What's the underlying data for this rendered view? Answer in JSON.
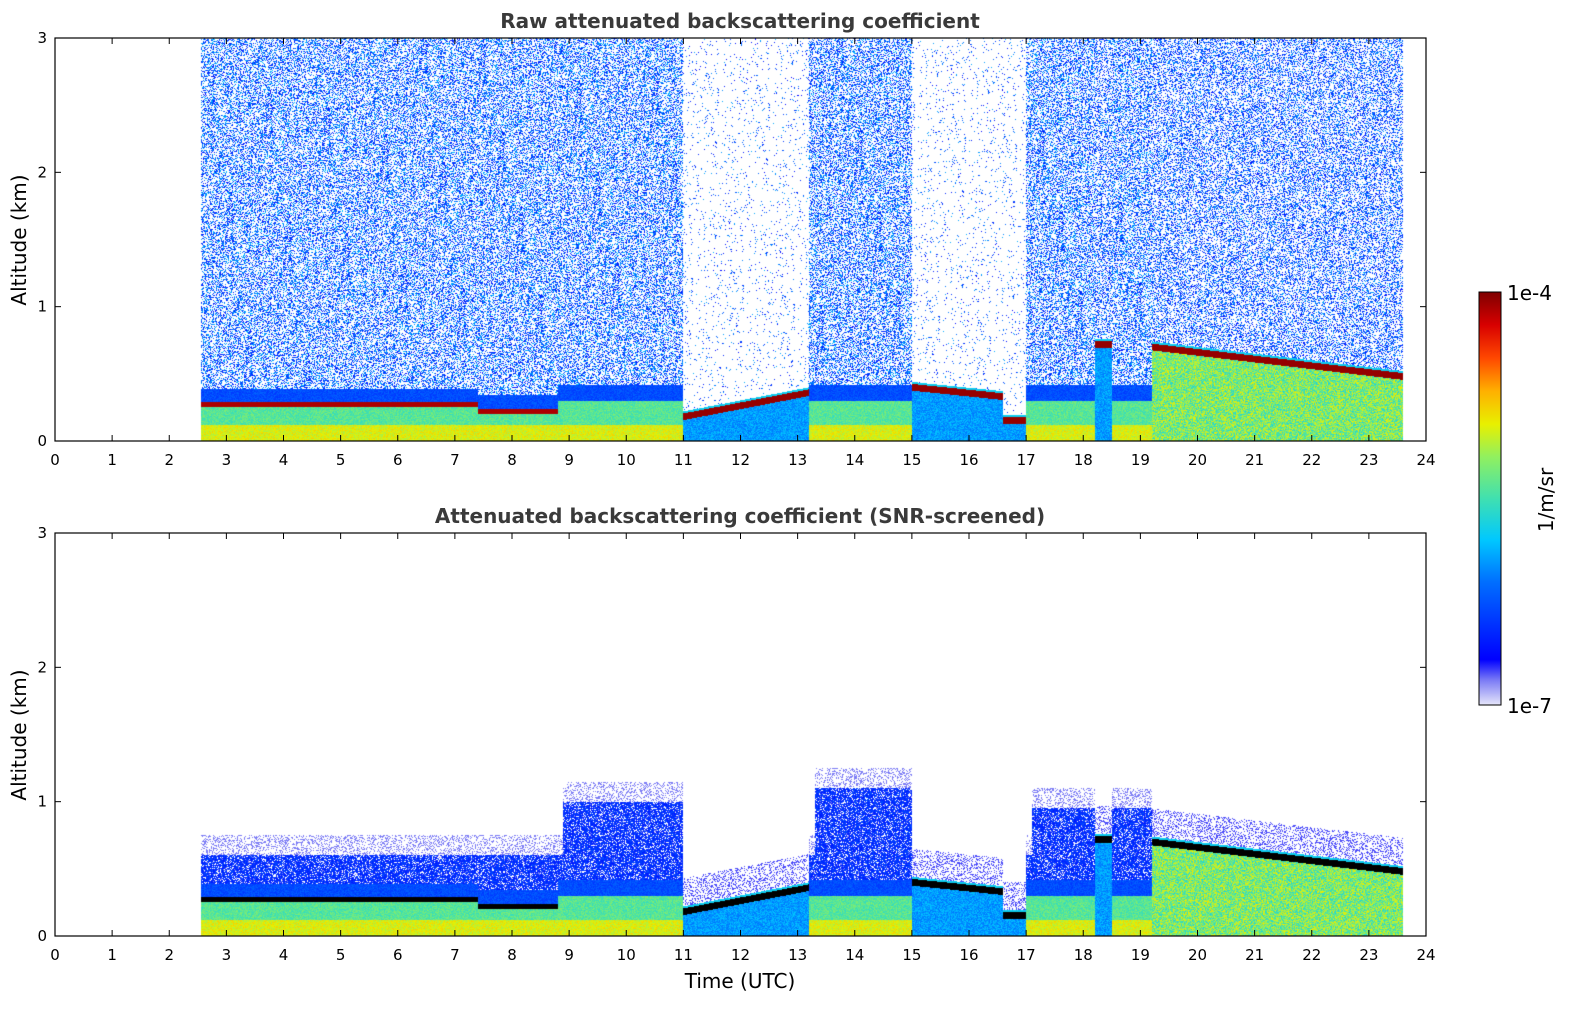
{
  "chart_data": [
    {
      "type": "heatmap",
      "title": "Raw attenuated backscattering coefficient",
      "xlabel": "",
      "ylabel": "Altitude (km)",
      "xlim": [
        0,
        24
      ],
      "ylim": [
        0,
        3
      ],
      "xticks": [
        "0",
        "1",
        "2",
        "3",
        "4",
        "5",
        "6",
        "7",
        "8",
        "9",
        "10",
        "11",
        "12",
        "13",
        "14",
        "15",
        "16",
        "17",
        "18",
        "19",
        "20",
        "21",
        "22",
        "23",
        "24"
      ],
      "yticks": [
        "0",
        "1",
        "2",
        "3"
      ],
      "data_start_time": 2.55,
      "data_end_time": 23.6,
      "features": [
        {
          "label": "aerosol layer top",
          "t": [
            2.6,
            8.8
          ],
          "alt_km": [
            0.3,
            0.3
          ]
        },
        {
          "label": "cloud base",
          "t": [
            11.0,
            13.2
          ],
          "alt_km": [
            0.2,
            0.38
          ]
        },
        {
          "label": "cloud base",
          "t": [
            15.0,
            16.6
          ],
          "alt_km": [
            0.42,
            0.33
          ]
        },
        {
          "label": "cloud base",
          "t": [
            19.2,
            23.6
          ],
          "alt_km": [
            0.7,
            0.5
          ]
        }
      ]
    },
    {
      "type": "heatmap",
      "title": "Attenuated backscattering coefficient (SNR-screened)",
      "xlabel": "Time (UTC)",
      "ylabel": "Altitude (km)",
      "xlim": [
        0,
        24
      ],
      "ylim": [
        0,
        3
      ],
      "xticks": [
        "0",
        "1",
        "2",
        "3",
        "4",
        "5",
        "6",
        "7",
        "8",
        "9",
        "10",
        "11",
        "12",
        "13",
        "14",
        "15",
        "16",
        "17",
        "18",
        "19",
        "20",
        "21",
        "22",
        "23",
        "24"
      ],
      "yticks": [
        "0",
        "1",
        "2",
        "3"
      ],
      "data_start_time": 2.55,
      "data_end_time": 23.6
    }
  ],
  "colorbar": {
    "label": "1/m/sr",
    "max_label": "1e-4",
    "min_label": "1e-7",
    "scale": "log",
    "colormap": "jet"
  }
}
